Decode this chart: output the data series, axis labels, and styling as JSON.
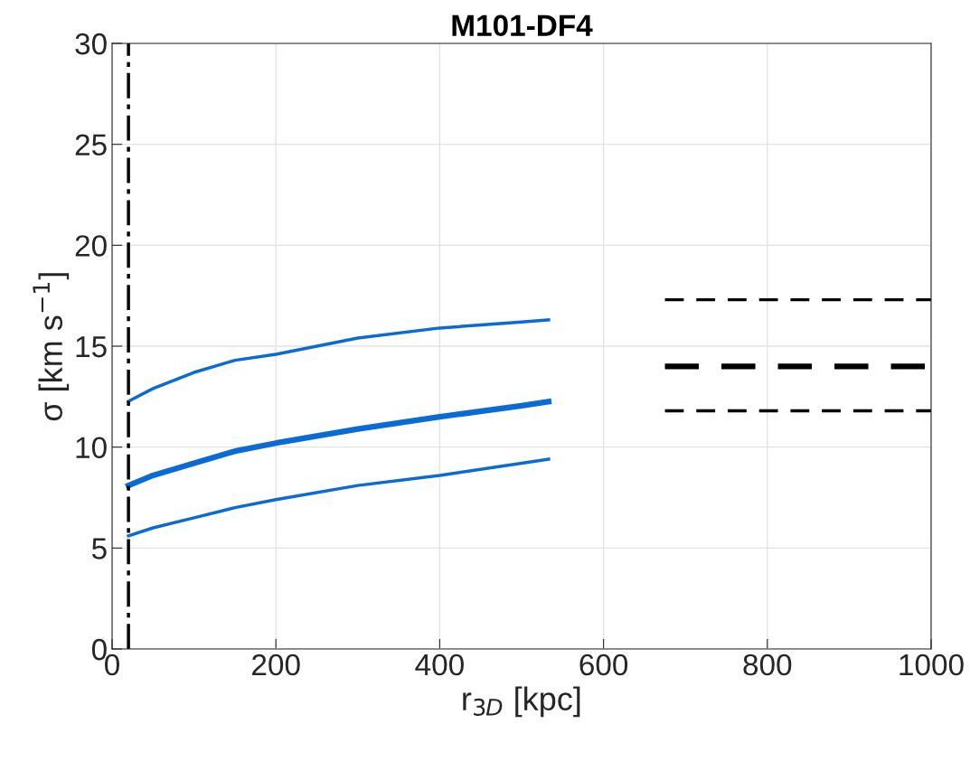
{
  "chart_data": {
    "type": "line",
    "title": "M101-DF4",
    "xlabel": "r$_{3D}$ [kpc]",
    "ylabel": "σ [km s$^{−1}$]",
    "xlim": [
      0,
      1000
    ],
    "xticks": [
      0,
      200,
      400,
      600,
      800,
      1000
    ],
    "ylim": [
      0,
      30
    ],
    "yticks": [
      0,
      5,
      10,
      15,
      20,
      25,
      30
    ],
    "grid": true,
    "series": [
      {
        "color": "#0a6bd6",
        "line_style": "solid",
        "x": [
          20,
          50,
          100,
          150,
          200,
          300,
          400,
          500,
          533
        ],
        "values": [
          12.27,
          12.9,
          13.7,
          14.3,
          14.6,
          15.4,
          15.9,
          16.2,
          16.3
        ]
      },
      {
        "color": "#0a6bd6",
        "line_style": "solid",
        "x": [
          20,
          50,
          100,
          150,
          200,
          300,
          400,
          500,
          533
        ],
        "values": [
          8.1,
          8.6,
          9.2,
          9.8,
          10.2,
          10.9,
          11.5,
          12.05,
          12.25
        ]
      },
      {
        "color": "#0a6bd6",
        "line_style": "solid",
        "x": [
          20,
          50,
          100,
          150,
          200,
          300,
          400,
          500,
          533
        ],
        "values": [
          5.6,
          6.0,
          6.5,
          7.0,
          7.4,
          8.1,
          8.6,
          9.2,
          9.4
        ]
      },
      {
        "color": "#000000",
        "line_style": "dashed",
        "x": [
          675,
          1000
        ],
        "values": [
          17.3,
          17.3
        ]
      },
      {
        "color": "#000000",
        "line_style": "dashed",
        "x": [
          675,
          1000
        ],
        "values": [
          14.0,
          14.0
        ]
      },
      {
        "color": "#000000",
        "line_style": "dashed",
        "x": [
          675,
          1000
        ],
        "values": [
          11.8,
          11.8
        ]
      }
    ],
    "ref_lines": [
      {
        "axis": "x",
        "value": 20,
        "color": "#000000",
        "line_style": "dashdot"
      }
    ]
  }
}
